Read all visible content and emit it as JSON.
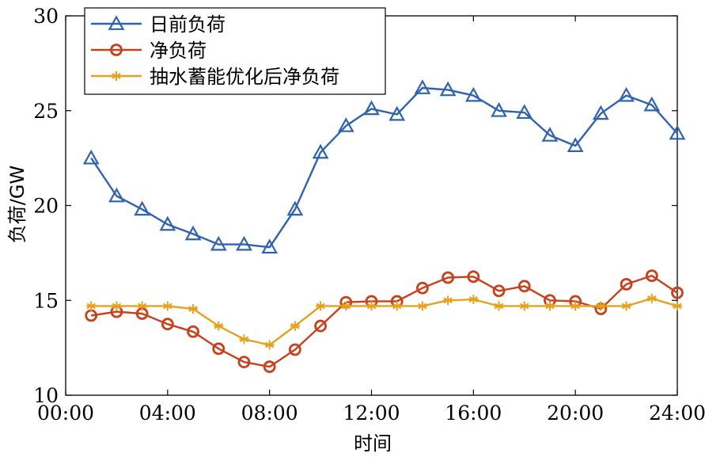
{
  "chart_data": {
    "type": "line",
    "xlabel": "时间",
    "ylabel": "负荷/GW",
    "xlim": [
      0,
      24
    ],
    "ylim": [
      10,
      30
    ],
    "x_ticks": [
      0,
      4,
      8,
      12,
      16,
      20,
      24
    ],
    "x_tick_labels": [
      "00:00",
      "04:00",
      "08:00",
      "12:00",
      "16:00",
      "20:00",
      "24:00"
    ],
    "y_ticks": [
      10,
      15,
      20,
      25,
      30
    ],
    "y_tick_labels": [
      "10",
      "15",
      "20",
      "25",
      "30"
    ],
    "grid": false,
    "legend_position": "top-left",
    "x": [
      1,
      2,
      3,
      4,
      5,
      6,
      7,
      8,
      9,
      10,
      11,
      12,
      13,
      14,
      15,
      16,
      17,
      18,
      19,
      20,
      21,
      22,
      23,
      24
    ],
    "series": [
      {
        "name": "日前负荷",
        "color": "#2f63ad",
        "marker": "triangle",
        "values": [
          22.5,
          20.5,
          19.8,
          19.0,
          18.5,
          17.95,
          17.95,
          17.8,
          19.8,
          22.8,
          24.2,
          25.1,
          24.8,
          26.2,
          26.1,
          25.8,
          25.0,
          24.9,
          23.7,
          23.15,
          24.85,
          25.8,
          25.3,
          23.8
        ]
      },
      {
        "name": "净负荷",
        "color": "#c8411d",
        "marker": "circle",
        "values": [
          14.2,
          14.4,
          14.3,
          13.75,
          13.35,
          12.45,
          11.75,
          11.5,
          12.4,
          13.65,
          14.9,
          14.95,
          14.95,
          15.65,
          16.2,
          16.25,
          15.5,
          15.75,
          15.0,
          14.95,
          14.55,
          15.85,
          16.3,
          15.4
        ]
      },
      {
        "name": "抽水蓄能优化后净负荷",
        "color": "#e6a21f",
        "marker": "asterisk",
        "values": [
          14.7,
          14.7,
          14.7,
          14.7,
          14.55,
          13.65,
          12.95,
          12.65,
          13.65,
          14.7,
          14.7,
          14.7,
          14.7,
          14.7,
          15.0,
          15.05,
          14.7,
          14.7,
          14.7,
          14.7,
          14.7,
          14.7,
          15.1,
          14.7
        ]
      }
    ]
  }
}
